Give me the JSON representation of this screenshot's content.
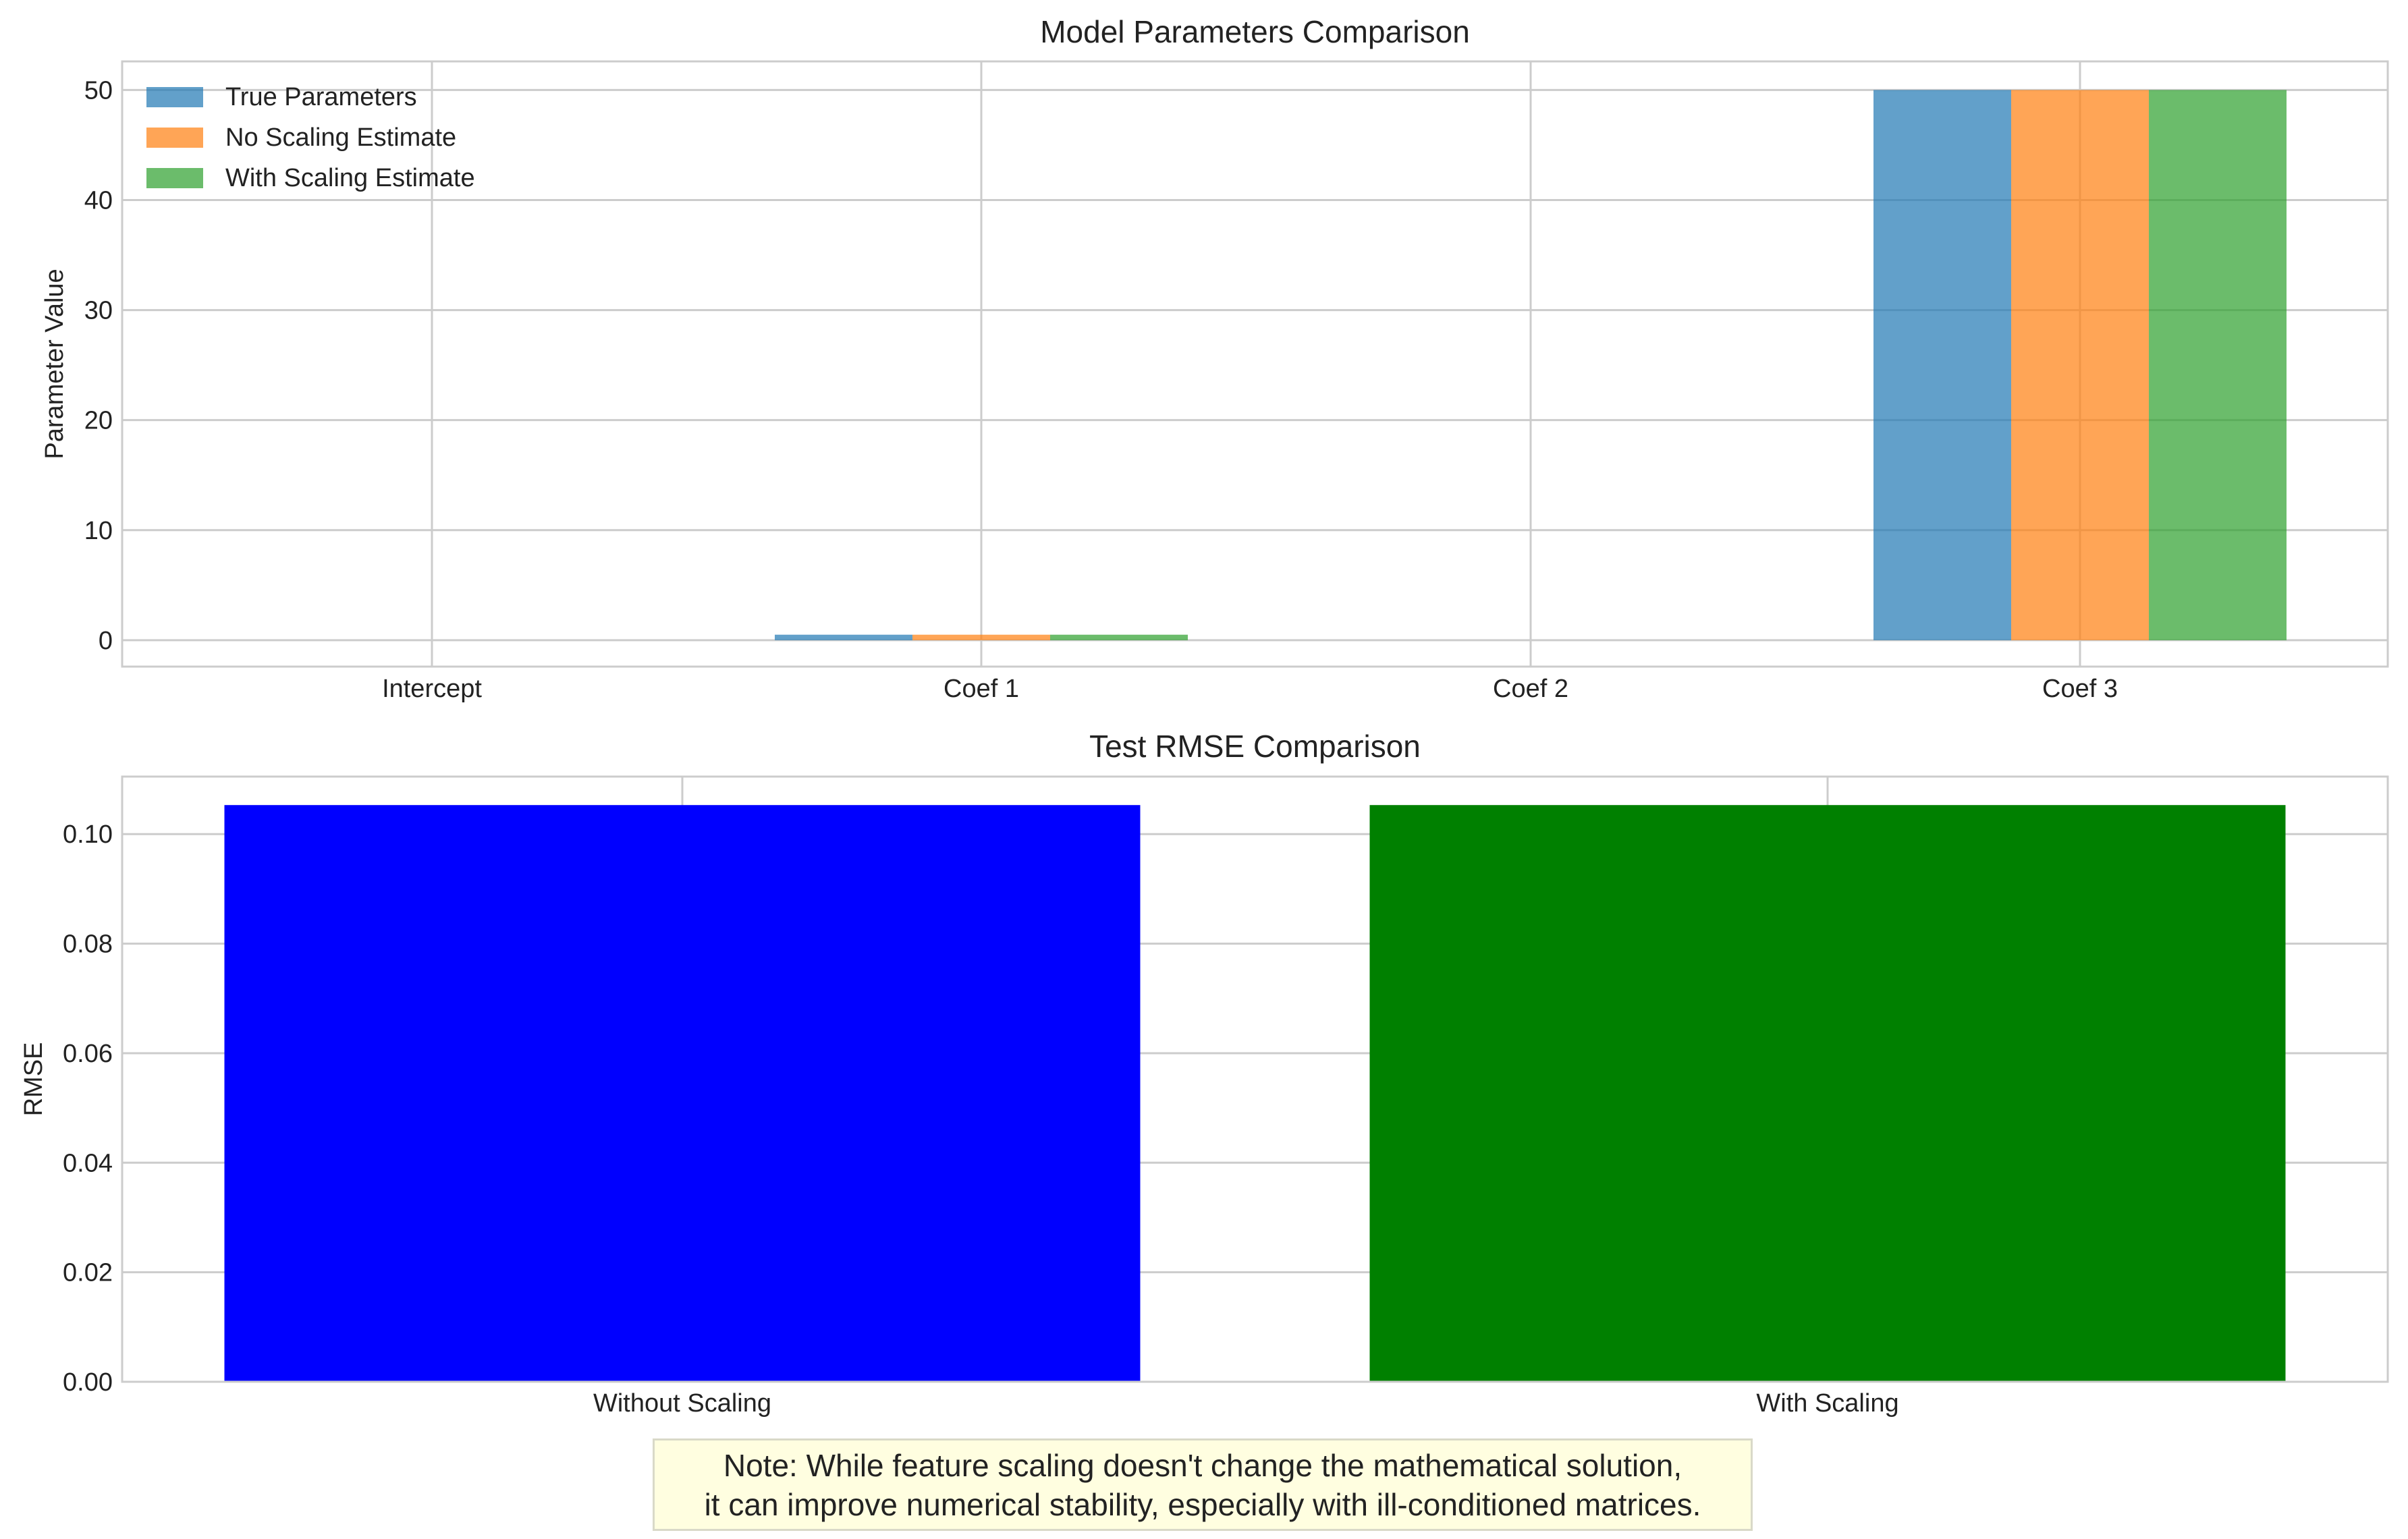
{
  "colors": {
    "true_params": "#1f77b4",
    "no_scaling": "#ff7f0e",
    "with_scaling": "#2ca02c",
    "rmse_without": "#0000ff",
    "rmse_with": "#008000",
    "grid": "#cccccc",
    "text": "#222222"
  },
  "chart_data": [
    {
      "type": "bar",
      "title": "Model Parameters Comparison",
      "xlabel": "",
      "ylabel": "Parameter Value",
      "categories": [
        "Intercept",
        "Coef 1",
        "Coef 2",
        "Coef 3"
      ],
      "series": [
        {
          "name": "True Parameters",
          "values": [
            0,
            0.5,
            0,
            50
          ]
        },
        {
          "name": "No Scaling Estimate",
          "values": [
            0,
            0.5,
            0,
            50
          ]
        },
        {
          "name": "With Scaling Estimate",
          "values": [
            0,
            0.5,
            0,
            50
          ]
        }
      ],
      "ylim": [
        -2.4,
        52.6
      ],
      "yticks": [
        0,
        10,
        20,
        30,
        40,
        50
      ],
      "ytick_labels": [
        "0",
        "10",
        "20",
        "30",
        "40",
        "50"
      ],
      "grid": true,
      "legend": "top-left"
    },
    {
      "type": "bar",
      "title": "Test RMSE Comparison",
      "xlabel": "",
      "ylabel": "RMSE",
      "categories": [
        "Without Scaling",
        "With Scaling"
      ],
      "values": [
        0.1053,
        0.1053
      ],
      "ylim": [
        0,
        0.1105
      ],
      "yticks": [
        0,
        0.02,
        0.04,
        0.06,
        0.08,
        0.1
      ],
      "ytick_labels": [
        "0.00",
        "0.02",
        "0.04",
        "0.06",
        "0.08",
        "0.10"
      ],
      "grid": true
    }
  ],
  "note": {
    "line1": "Note: While feature scaling doesn't change the mathematical solution,",
    "line2": "it can improve numerical stability, especially with ill-conditioned matrices."
  }
}
